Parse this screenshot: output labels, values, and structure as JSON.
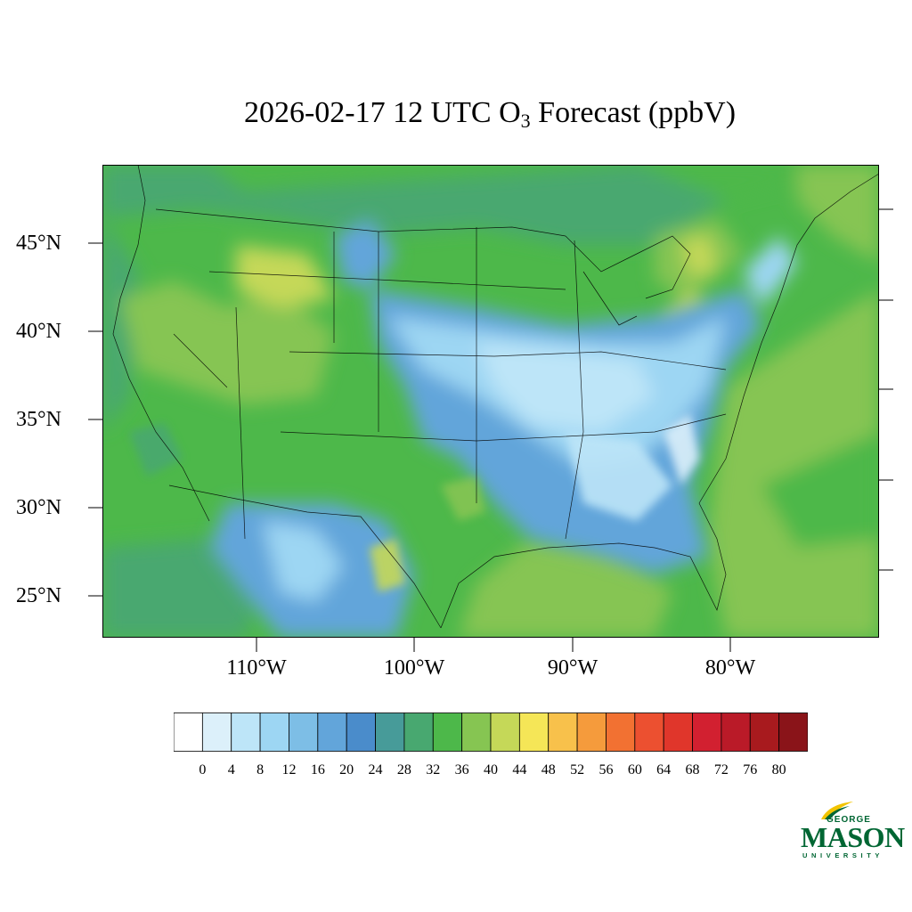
{
  "title": {
    "prefix": "2026-02-17 12 UTC O",
    "subscript": "3",
    "suffix": " Forecast (ppbV)"
  },
  "map": {
    "lat_labels": [
      "45°N",
      "40°N",
      "35°N",
      "30°N",
      "25°N"
    ],
    "lon_labels": [
      "110°W",
      "100°W",
      "90°W",
      "80°W"
    ],
    "background_color": "#48A870"
  },
  "colorbar": {
    "labels": [
      "0",
      "4",
      "8",
      "12",
      "16",
      "20",
      "24",
      "28",
      "32",
      "36",
      "40",
      "44",
      "48",
      "52",
      "56",
      "60",
      "64",
      "68",
      "72",
      "76",
      "80"
    ],
    "colors": [
      "#FFFFFF",
      "#DCF0FA",
      "#BDE5F8",
      "#9DD6F3",
      "#7DBEE6",
      "#62A5DA",
      "#4A8CCB",
      "#479B99",
      "#48A870",
      "#4DB84A",
      "#86C552",
      "#C5D858",
      "#F5E657",
      "#F8C14B",
      "#F59B3C",
      "#F27132",
      "#EC5030",
      "#E0362B",
      "#D22030",
      "#BA1A28",
      "#A81A1E",
      "#8A1419"
    ]
  },
  "logo": {
    "george": "GEORGE",
    "mason": "MASON",
    "university": "UNIVERSITY",
    "color": "#006633",
    "accent": "#F2C400"
  }
}
